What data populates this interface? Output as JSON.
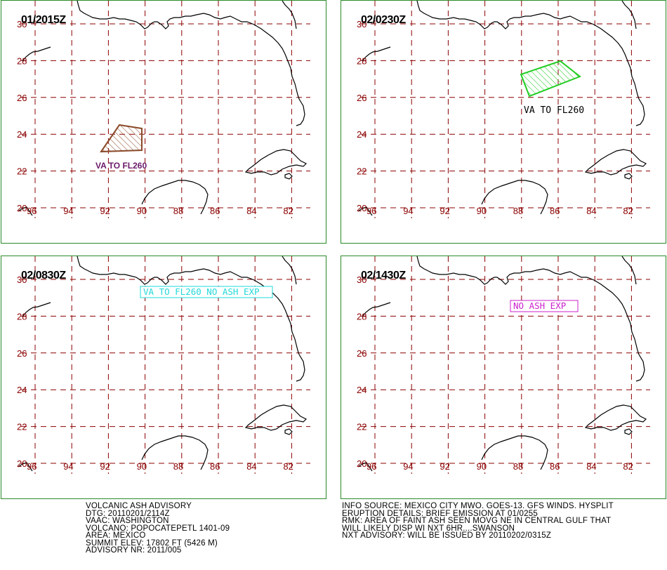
{
  "panels": [
    {
      "time": "01/2015Z",
      "label": "VA TO FL260",
      "label_color": "#6b1a6b",
      "poly_color": "#8a4a2a",
      "has_polygon": true
    },
    {
      "time": "02/0230Z",
      "label": "VA TO FL260",
      "label_color": "#000000",
      "poly_color": "#22cc22",
      "has_polygon": true
    },
    {
      "time": "02/0830Z",
      "label": "VA TO FL260 NO ASH EXP",
      "label_color": "#22d8d8",
      "poly_color": "",
      "has_polygon": false,
      "boxed": true
    },
    {
      "time": "02/1430Z",
      "label": "NO ASH EXP",
      "label_color": "#cc22cc",
      "poly_color": "",
      "has_polygon": false,
      "boxed": true
    }
  ],
  "grid": {
    "lat_labels": [
      "30",
      "28",
      "26",
      "24",
      "22",
      "20"
    ],
    "lon_labels": [
      "96",
      "94",
      "92",
      "90",
      "88",
      "86",
      "84",
      "82"
    ],
    "grid_color": "#8b0000",
    "label_color": "#8b0000"
  },
  "advisory_left": {
    "line1": "VOLCANIC ASH ADVISORY",
    "line2": "DTG: 20110201/2114Z",
    "line3": "VAAC: WASHINGTON",
    "line4": "VOLCANO: POPOCATEPETL 1401-09",
    "line5": "AREA: MEXICO",
    "line6": "SUMMIT ELEV: 17802 FT (5426 M)",
    "line7": "ADVISORY NR: 2011/005"
  },
  "advisory_right": {
    "line1": "INFO SOURCE: MEXICO CITY MWO. GOES-13. GFS WINDS. HYSPLIT",
    "line2": "ERUPTION DETAILS: BRIEF EMISSION AT 01/0255",
    "line3": "RMK: AREA OF FAINT ASH SEEN MOVG NE IN CENTRAL GULF THAT",
    "line4": "WILL LIKELY DISP WI NXT 6HR....SWANSON",
    "line5": "NXT ADVISORY: WILL BE ISSUED BY 20110202/0315Z"
  }
}
